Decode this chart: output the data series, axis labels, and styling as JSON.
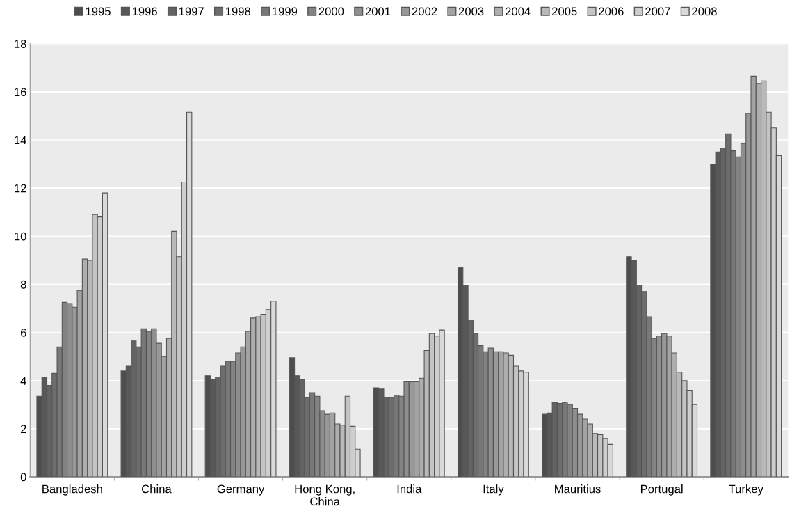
{
  "chart_data": {
    "type": "bar",
    "categories": [
      "Bangladesh",
      "China",
      "Germany",
      "Hong Kong,\nChina",
      "India",
      "Italy",
      "Mauritius",
      "Portugal",
      "Turkey"
    ],
    "series": [
      {
        "name": "1995",
        "color": "#4d4d4d",
        "values": [
          3.35,
          4.4,
          4.2,
          4.95,
          3.7,
          8.7,
          2.6,
          9.15,
          13.0
        ]
      },
      {
        "name": "1996",
        "color": "#585858",
        "values": [
          4.15,
          4.6,
          4.05,
          4.2,
          3.65,
          7.95,
          2.65,
          9.0,
          13.5
        ]
      },
      {
        "name": "1997",
        "color": "#636363",
        "values": [
          3.8,
          5.65,
          4.15,
          4.05,
          3.3,
          6.5,
          3.1,
          7.95,
          13.65
        ]
      },
      {
        "name": "1998",
        "color": "#6d6d6d",
        "values": [
          4.3,
          5.4,
          4.6,
          3.3,
          3.3,
          5.95,
          3.05,
          7.7,
          14.25
        ]
      },
      {
        "name": "1999",
        "color": "#787878",
        "values": [
          5.4,
          6.15,
          4.8,
          3.5,
          3.4,
          5.45,
          3.1,
          6.65,
          13.55
        ]
      },
      {
        "name": "2000",
        "color": "#838383",
        "values": [
          7.25,
          6.05,
          4.8,
          3.35,
          3.35,
          5.2,
          3.0,
          5.75,
          13.3
        ]
      },
      {
        "name": "2001",
        "color": "#8e8e8e",
        "values": [
          7.2,
          6.15,
          5.15,
          2.75,
          3.95,
          5.35,
          2.85,
          5.85,
          13.85
        ]
      },
      {
        "name": "2002",
        "color": "#989898",
        "values": [
          7.05,
          5.55,
          5.4,
          2.6,
          3.95,
          5.2,
          2.6,
          5.95,
          15.1
        ]
      },
      {
        "name": "2003",
        "color": "#a3a3a3",
        "values": [
          7.75,
          5.0,
          6.05,
          2.65,
          3.95,
          5.2,
          2.4,
          5.85,
          16.65
        ]
      },
      {
        "name": "2004",
        "color": "#aeaeae",
        "values": [
          9.05,
          5.75,
          6.6,
          2.2,
          4.1,
          5.15,
          2.2,
          5.15,
          16.35
        ]
      },
      {
        "name": "2005",
        "color": "#b9b9b9",
        "values": [
          9.0,
          10.2,
          6.65,
          2.15,
          5.25,
          5.05,
          1.8,
          4.35,
          16.45
        ]
      },
      {
        "name": "2006",
        "color": "#c4c4c4",
        "values": [
          10.9,
          9.15,
          6.75,
          3.35,
          5.95,
          4.6,
          1.75,
          4.0,
          15.15
        ]
      },
      {
        "name": "2007",
        "color": "#cecece",
        "values": [
          10.8,
          12.25,
          6.95,
          2.1,
          5.85,
          4.4,
          1.6,
          3.6,
          14.5
        ]
      },
      {
        "name": "2008",
        "color": "#d9d9d9",
        "values": [
          11.8,
          15.15,
          7.3,
          1.15,
          6.1,
          4.35,
          1.35,
          3.0,
          13.35
        ]
      }
    ],
    "ylim": [
      0,
      18
    ],
    "yticks": [
      0,
      2,
      4,
      6,
      8,
      10,
      12,
      14,
      16,
      18
    ],
    "grid": "y",
    "legend": "top"
  }
}
